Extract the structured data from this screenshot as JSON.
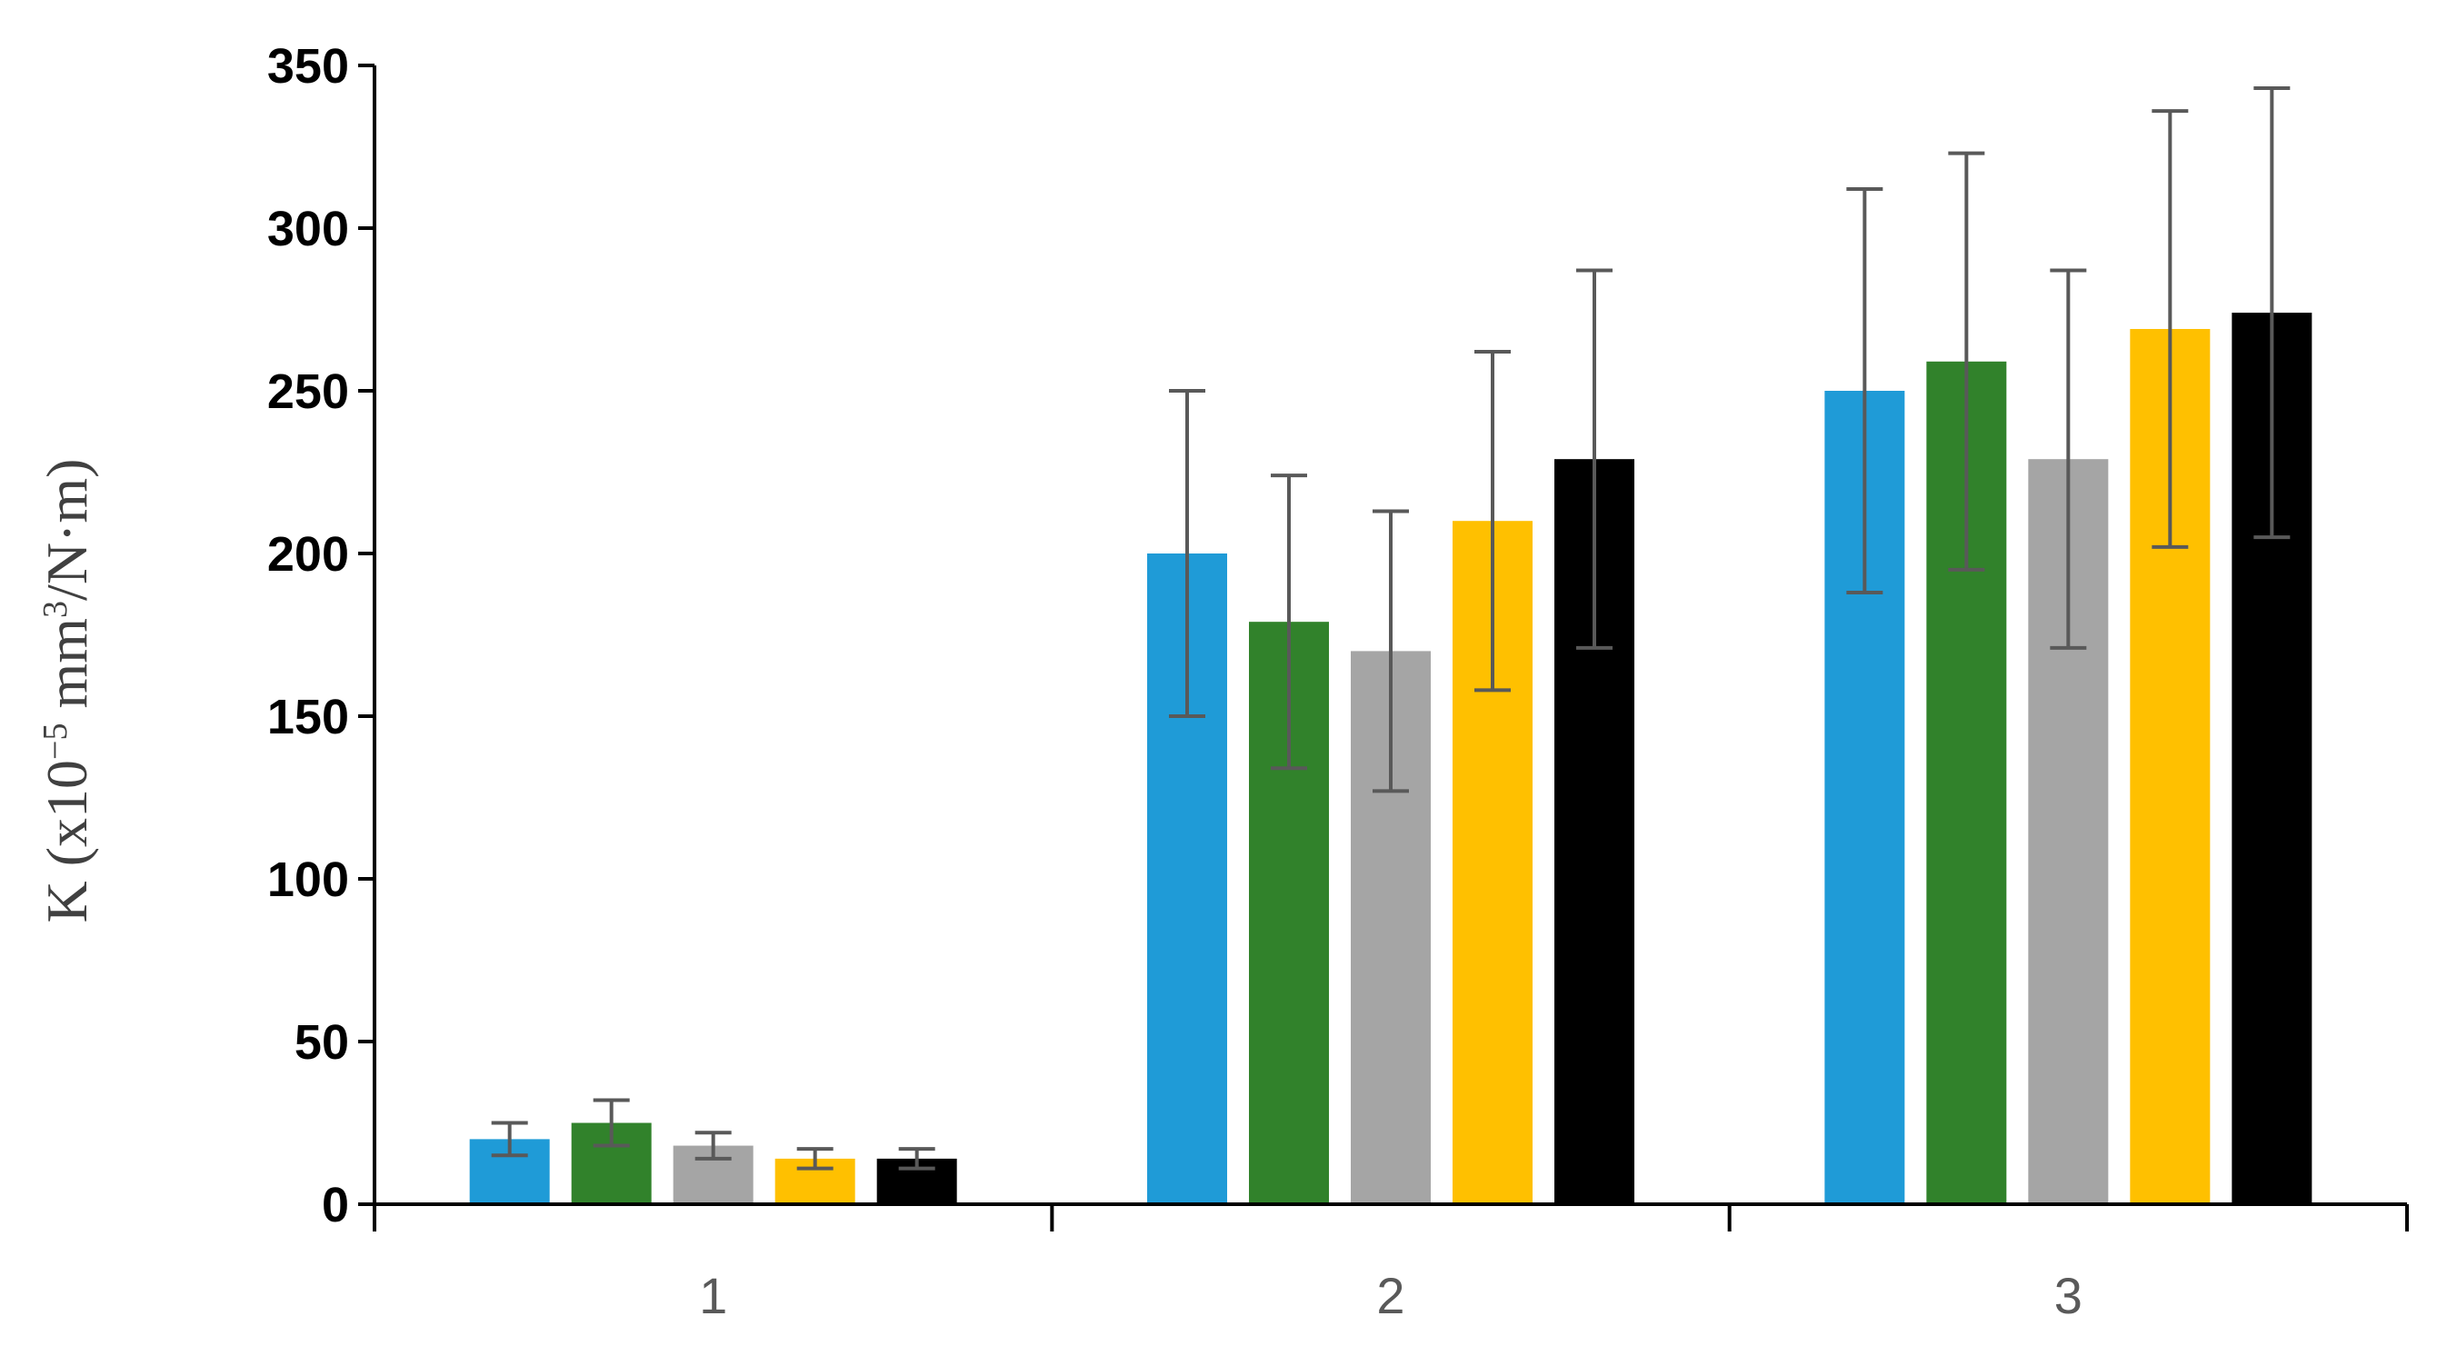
{
  "chart_data": {
    "type": "bar",
    "categories": [
      "1",
      "2",
      "3"
    ],
    "ylabel_parts": {
      "prefix": "K (x10",
      "exp1": "−5",
      "mid": " mm",
      "exp2": "3",
      "suffix": "/N·m)"
    },
    "ylim": [
      0,
      350
    ],
    "yticks": [
      0,
      50,
      100,
      150,
      200,
      250,
      300,
      350
    ],
    "grid": false,
    "legend": "none",
    "series": [
      {
        "color": "#1F9BD7",
        "values": [
          20,
          200,
          250
        ],
        "errors": [
          5,
          50,
          62
        ]
      },
      {
        "color": "#31822B",
        "values": [
          25,
          179,
          259
        ],
        "errors": [
          7,
          45,
          64
        ]
      },
      {
        "color": "#A5A5A5",
        "values": [
          18,
          170,
          229
        ],
        "errors": [
          4,
          43,
          58
        ]
      },
      {
        "color": "#FFC000",
        "values": [
          14,
          210,
          269
        ],
        "errors": [
          3,
          52,
          67
        ]
      },
      {
        "color": "#000000",
        "values": [
          14,
          229,
          274
        ],
        "errors": [
          3,
          58,
          69
        ]
      }
    ],
    "error_bar_color": "#595959",
    "axis_color": "#000000"
  }
}
